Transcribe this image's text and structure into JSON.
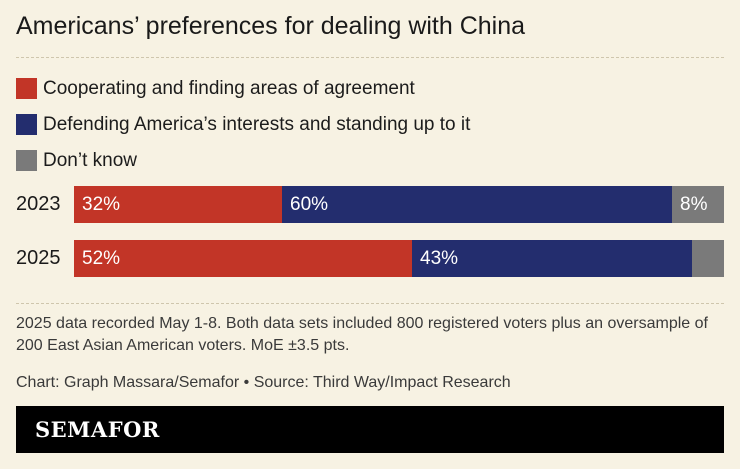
{
  "header": {
    "title": "Americans’ preferences for dealing with China"
  },
  "colors": {
    "background": "#f7f2e3",
    "cooperate": "#c23527",
    "defend": "#232d6e",
    "dontknow": "#7a7a7a"
  },
  "chart_data": {
    "type": "bar",
    "orientation": "horizontal",
    "stacked": true,
    "normalized": true,
    "categories": [
      "2023",
      "2025"
    ],
    "series": [
      {
        "name": "Cooperating and finding areas of agreement",
        "values": [
          32,
          52
        ],
        "labels": [
          "32%",
          "52%"
        ],
        "color": "#c23527"
      },
      {
        "name": "Defending America’s interests and standing up to it",
        "values": [
          60,
          43
        ],
        "labels": [
          "60%",
          "43%"
        ],
        "color": "#232d6e"
      },
      {
        "name": "Don’t know",
        "values": [
          8,
          5
        ],
        "labels": [
          "8%",
          ""
        ],
        "color": "#7a7a7a"
      }
    ],
    "xlim": [
      0,
      100
    ],
    "legend": "top-left",
    "grid": false
  },
  "notes": {
    "footnote": "2025 data recorded May 1-8. Both data sets included 800 registered voters plus an oversample of 200 East Asian American voters. MoE ±3.5 pts.",
    "credit": "Chart: Graph Massara/Semafor • Source: Third Way/Impact Research"
  },
  "brand": {
    "name": "SEMAFOR"
  }
}
